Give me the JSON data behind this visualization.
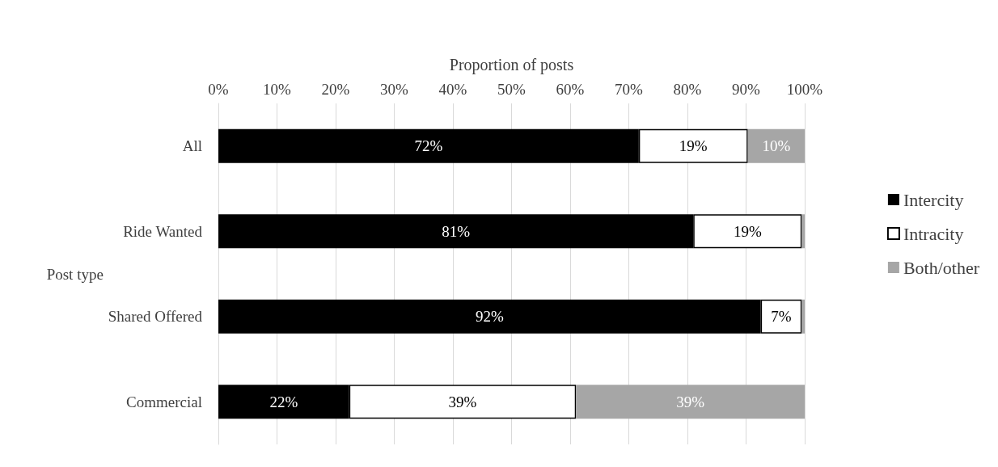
{
  "chart_data": {
    "type": "bar",
    "orientation": "horizontal",
    "stacked": true,
    "xlabel": "Proportion of posts",
    "ylabel": "Post type",
    "categories": [
      "All",
      "Ride Wanted",
      "Shared Offered",
      "Commercial"
    ],
    "series": [
      {
        "name": "Intercity",
        "color": "#000000",
        "values": [
          71.7,
          81,
          92.5,
          22.3
        ],
        "value_labels": [
          "72%",
          "81%",
          "92%",
          "22%"
        ]
      },
      {
        "name": "Intracity",
        "color": "#ffffff",
        "values": [
          18.6,
          18.5,
          7,
          38.7
        ],
        "value_labels": [
          "19%",
          "19%",
          "7%",
          "39%"
        ]
      },
      {
        "name": "Both/other",
        "color": "#a6a6a6",
        "values": [
          9.7,
          0.5,
          0.5,
          39
        ],
        "value_labels": [
          "10%",
          null,
          null,
          "39%"
        ]
      }
    ],
    "xlim": [
      0,
      100
    ],
    "xticks": [
      {
        "value": 0,
        "label": "0%"
      },
      {
        "value": 10,
        "label": "10%"
      },
      {
        "value": 20,
        "label": "20%"
      },
      {
        "value": 30,
        "label": "30%"
      },
      {
        "value": 40,
        "label": "40%"
      },
      {
        "value": 50,
        "label": "50%"
      },
      {
        "value": 60,
        "label": "60%"
      },
      {
        "value": 70,
        "label": "70%"
      },
      {
        "value": 80,
        "label": "80%"
      },
      {
        "value": 90,
        "label": "90%"
      },
      {
        "value": 100,
        "label": "100%"
      }
    ],
    "grid": "x",
    "legend": "right"
  }
}
